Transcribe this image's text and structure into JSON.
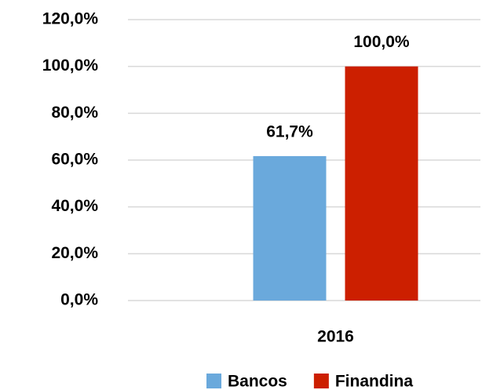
{
  "chart_data": {
    "type": "bar",
    "categories": [
      "2016"
    ],
    "series": [
      {
        "name": "Bancos",
        "color": "#6aa9dc",
        "values": [
          61.7
        ],
        "value_labels": [
          "61,7%"
        ]
      },
      {
        "name": "Finandina",
        "color": "#cc1f00",
        "values": [
          100
        ],
        "value_labels": [
          "100,0%"
        ]
      }
    ],
    "ylim": [
      0,
      120
    ],
    "yticks": [
      {
        "value": 0,
        "label": "0,0%"
      },
      {
        "value": 20,
        "label": "20,0%"
      },
      {
        "value": 40,
        "label": "40,0%"
      },
      {
        "value": 60,
        "label": "60,0%"
      },
      {
        "value": 80,
        "label": "80,0%"
      },
      {
        "value": 100,
        "label": "100,0%"
      },
      {
        "value": 120,
        "label": "120,0%"
      }
    ],
    "grid": true,
    "legend": "bottom"
  }
}
